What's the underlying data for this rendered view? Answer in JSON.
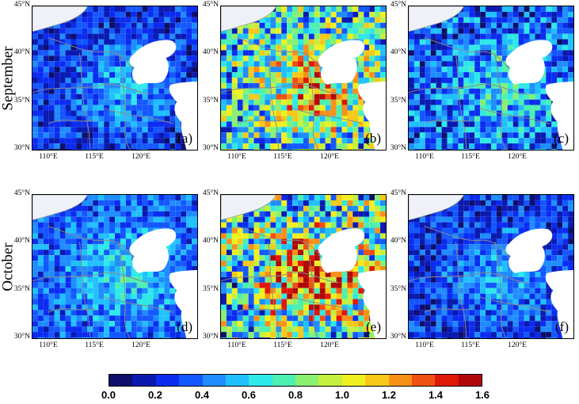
{
  "rows": [
    {
      "label": "September",
      "panels": [
        {
          "letter": "(a)"
        },
        {
          "letter": "(b)"
        },
        {
          "letter": "(c)"
        }
      ]
    },
    {
      "label": "October",
      "panels": [
        {
          "letter": "(d)"
        },
        {
          "letter": "(e)"
        },
        {
          "letter": "(f)"
        }
      ]
    }
  ],
  "lat_ticks": [
    "45°N",
    "40°N",
    "35°N",
    "30°N"
  ],
  "lon_ticks": [
    "110°E",
    "115°E",
    "120°E"
  ],
  "colorbar": {
    "labels": [
      "0.0",
      "0.2",
      "0.4",
      "0.6",
      "0.8",
      "1.0",
      "1.2",
      "1.4",
      "1.6"
    ],
    "colors": [
      "#0d0f6b",
      "#0a1ab0",
      "#0b2cf0",
      "#1457ff",
      "#1f8cff",
      "#20c0ff",
      "#2fe8e8",
      "#4cf0b0",
      "#8af070",
      "#c4f040",
      "#f0f020",
      "#f8c818",
      "#f89018",
      "#f05010",
      "#e01808",
      "#b00808"
    ]
  }
}
